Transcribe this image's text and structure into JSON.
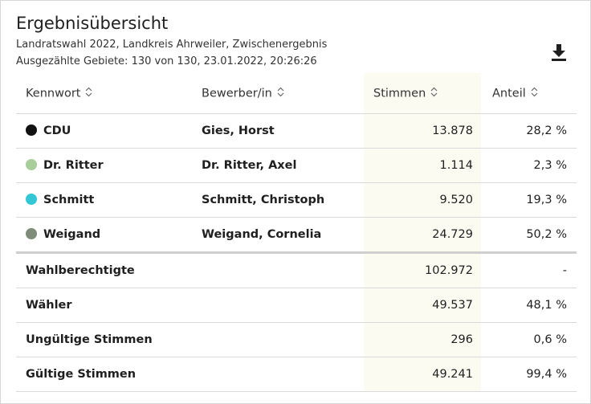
{
  "header": {
    "title": "Ergebnisübersicht",
    "subtitle": "Landratswahl 2022, Landkreis Ahrweiler, Zwischenergebnis",
    "status": "Ausgezählte Gebiete: 130 von 130, 23.01.2022, 20:26:26"
  },
  "toolbar": {
    "download_icon": "download-icon"
  },
  "table": {
    "columns": [
      "Kennwort",
      "Bewerber/in",
      "Stimmen",
      "Anteil"
    ],
    "candidates": [
      {
        "kennwort": "CDU",
        "bewerber": "Gies, Horst",
        "stimmen": "13.878",
        "anteil": "28,2 %",
        "color": "#111111"
      },
      {
        "kennwort": "Dr. Ritter",
        "bewerber": "Dr. Ritter, Axel",
        "stimmen": "1.114",
        "anteil": "2,3 %",
        "color": "#a9cd9b"
      },
      {
        "kennwort": "Schmitt",
        "bewerber": "Schmitt, Christoph",
        "stimmen": "9.520",
        "anteil": "19,3 %",
        "color": "#33c7d6"
      },
      {
        "kennwort": "Weigand",
        "bewerber": "Weigand, Cornelia",
        "stimmen": "24.729",
        "anteil": "50,2 %",
        "color": "#7f8c7a"
      }
    ],
    "summary": [
      {
        "label": "Wahlberechtigte",
        "stimmen": "102.972",
        "anteil": "-"
      },
      {
        "label": "Wähler",
        "stimmen": "49.537",
        "anteil": "48,1 %"
      },
      {
        "label": "Ungültige Stimmen",
        "stimmen": "296",
        "anteil": "0,6 %"
      },
      {
        "label": "Gültige Stimmen",
        "stimmen": "49.241",
        "anteil": "99,4 %"
      }
    ]
  }
}
